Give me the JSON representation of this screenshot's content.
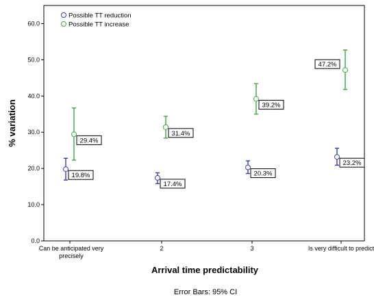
{
  "chart_data": {
    "type": "scatter",
    "categories": [
      "Can be anticipated very precisely",
      "2",
      "3",
      "Is very difficult to predict"
    ],
    "xlabel": "Arrival time predictability",
    "ylabel": "% variation",
    "ylim": [
      0,
      65
    ],
    "yticks": [
      0.0,
      10.0,
      20.0,
      30.0,
      40.0,
      50.0,
      60.0
    ],
    "ytick_labels": [
      "0.0",
      "10.0",
      "20.0",
      "30.0",
      "40.0",
      "50.0",
      "60.0"
    ],
    "grid": false,
    "legend": "top-left",
    "footnote": "Error Bars: 95% CI",
    "series": [
      {
        "name": "Possible TT reduction",
        "color": "#3a3fa6",
        "values": [
          19.8,
          17.4,
          20.3,
          23.2
        ],
        "ci_low": [
          16.8,
          15.8,
          18.6,
          20.9
        ],
        "ci_high": [
          22.8,
          18.8,
          22.1,
          25.6
        ],
        "labels": [
          "19.8%",
          "17.4%",
          "20.3%",
          "23.2%"
        ]
      },
      {
        "name": "Possible TT increase",
        "color": "#3fa63f",
        "values": [
          29.4,
          31.4,
          39.2,
          47.2
        ],
        "ci_low": [
          22.3,
          28.4,
          35.0,
          41.8
        ],
        "ci_high": [
          36.7,
          34.4,
          43.4,
          52.7
        ],
        "labels": [
          "29.4%",
          "31.4%",
          "39.2%",
          "47.2%"
        ]
      }
    ]
  }
}
